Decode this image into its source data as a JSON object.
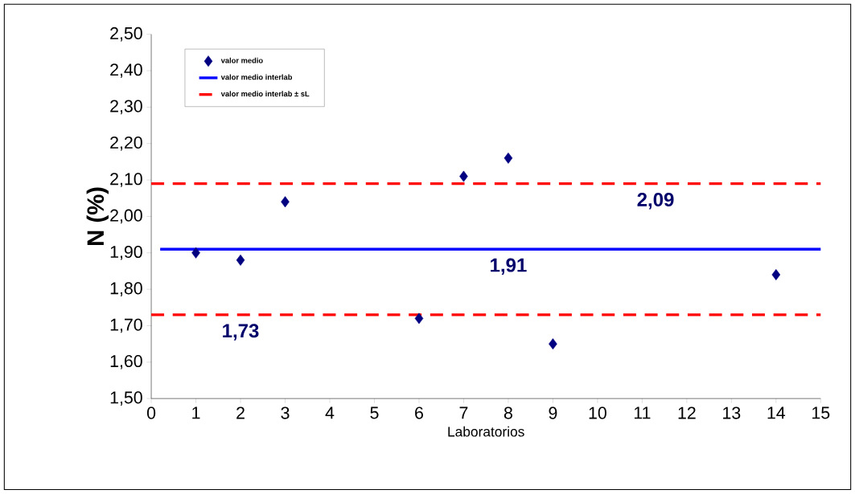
{
  "chart_data": {
    "type": "scatter",
    "xlabel": "Laboratorios",
    "ylabel": "N (%)",
    "xlim": [
      0,
      15
    ],
    "xticks": [
      0,
      1,
      2,
      3,
      4,
      5,
      6,
      7,
      8,
      9,
      10,
      11,
      12,
      13,
      14,
      15
    ],
    "ylim": [
      1.5,
      2.5
    ],
    "yticks": [
      {
        "value": 1.5,
        "label": "1,50"
      },
      {
        "value": 1.6,
        "label": "1,60"
      },
      {
        "value": 1.7,
        "label": "1,70"
      },
      {
        "value": 1.8,
        "label": "1,80"
      },
      {
        "value": 1.9,
        "label": "1,90"
      },
      {
        "value": 2.0,
        "label": "2,00"
      },
      {
        "value": 2.1,
        "label": "2,10"
      },
      {
        "value": 2.2,
        "label": "2,20"
      },
      {
        "value": 2.3,
        "label": "2,30"
      },
      {
        "value": 2.4,
        "label": "2,40"
      },
      {
        "value": 2.5,
        "label": "2,50"
      }
    ],
    "series": [
      {
        "name": "valor medio",
        "color": "#000080",
        "marker": "diamond",
        "x": [
          1,
          2,
          3,
          6,
          7,
          8,
          9,
          14
        ],
        "values": [
          1.9,
          1.88,
          2.04,
          1.72,
          2.11,
          2.16,
          1.65,
          1.84
        ]
      },
      {
        "name": "valor medio interlab",
        "type": "line",
        "color": "#0000ff",
        "line_style": "solid",
        "x": [
          0.2,
          15
        ],
        "values": [
          1.91,
          1.91
        ]
      },
      {
        "name": "valor medio interlab ± sL",
        "type": "line",
        "color": "#ff0000",
        "line_style": "dashed",
        "x": [
          0,
          15
        ],
        "values": [
          2.09,
          2.09
        ]
      },
      {
        "type": "line",
        "color": "#ff0000",
        "line_style": "dashed",
        "x": [
          0,
          15
        ],
        "values": [
          1.73,
          1.73
        ]
      }
    ],
    "annotations": [
      {
        "text": "2,09",
        "x": 11.3,
        "y": 2.09
      },
      {
        "text": "1,91",
        "x": 8.0,
        "y": 1.91
      },
      {
        "text": "1,73",
        "x": 2.0,
        "y": 1.73
      }
    ],
    "grid": false,
    "legend": "top left"
  }
}
